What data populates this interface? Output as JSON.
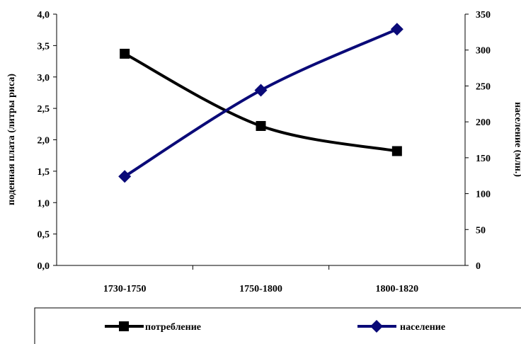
{
  "chart_data": {
    "type": "line",
    "categories": [
      "1730-1750",
      "1750-1800",
      "1800-1820"
    ],
    "series": [
      {
        "name": "потребление",
        "axis": "left",
        "color": "#000000",
        "marker": "square",
        "values": [
          3.37,
          2.22,
          1.82
        ]
      },
      {
        "name": "население",
        "axis": "right",
        "color": "#0a0a78",
        "marker": "diamond",
        "values": [
          124,
          244,
          329
        ]
      }
    ],
    "y_left": {
      "label": "поденная плата (литры риса)",
      "range": [
        0,
        4
      ],
      "ticks": [
        "0,0",
        "0,5",
        "1,0",
        "1,5",
        "2,0",
        "2,5",
        "3,0",
        "3,5",
        "4,0"
      ]
    },
    "y_right": {
      "label": "население (млн.)",
      "range": [
        0,
        350
      ],
      "ticks": [
        "0",
        "50",
        "100",
        "150",
        "200",
        "250",
        "300",
        "350"
      ]
    },
    "grid": false,
    "legend_position": "bottom"
  }
}
